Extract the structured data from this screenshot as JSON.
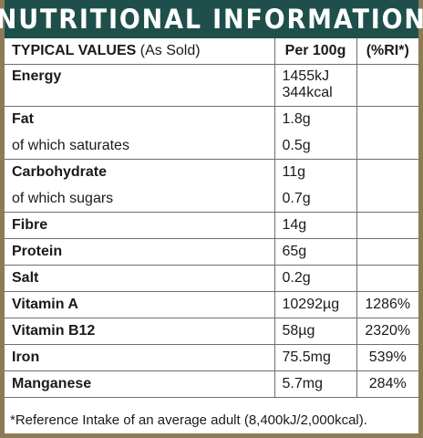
{
  "title": "NUTRITIONAL INFORMATION",
  "header": {
    "typical": "TYPICAL VALUES",
    "as_sold": "(As Sold)",
    "per100g": "Per 100g",
    "ri": "(%RI*)"
  },
  "rows": [
    {
      "name": "Energy",
      "value": "1455kJ",
      "value2": "344kcal",
      "ri": ""
    },
    {
      "name": "Fat",
      "value": "1.8g",
      "ri": ""
    },
    {
      "name": "of which saturates",
      "value": "0.5g",
      "ri": ""
    },
    {
      "name": "Carbohydrate",
      "value": "11g",
      "ri": ""
    },
    {
      "name": "of which sugars",
      "value": "0.7g",
      "ri": ""
    },
    {
      "name": "Fibre",
      "value": "14g",
      "ri": ""
    },
    {
      "name": "Protein",
      "value": "65g",
      "ri": ""
    },
    {
      "name": "Salt",
      "value": "0.2g",
      "ri": ""
    },
    {
      "name": "Vitamin A",
      "value": "10292µg",
      "ri": "1286%"
    },
    {
      "name": "Vitamin B12",
      "value": "58µg",
      "ri": "2320%"
    },
    {
      "name": "Iron",
      "value": "75.5mg",
      "ri": "539%"
    },
    {
      "name": "Manganese",
      "value": "5.7mg",
      "ri": "284%"
    }
  ],
  "footnote": "*Reference Intake of an average adult (8,400kJ/2,000kcal).",
  "colors": {
    "title_bg": "#1e4f4b",
    "frame": "#8d7a56",
    "grid": "#6f6f6f"
  }
}
